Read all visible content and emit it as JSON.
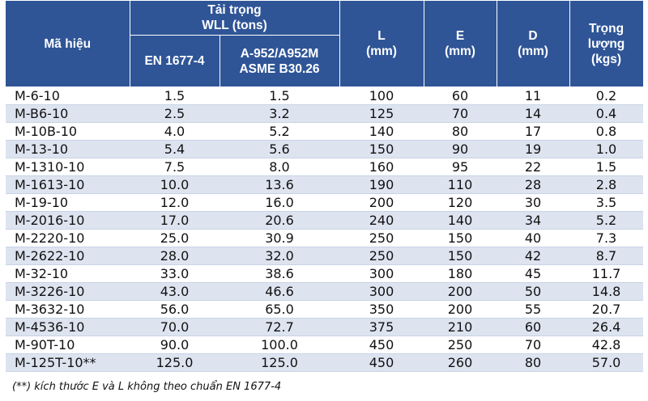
{
  "header": {
    "model": "Mã hiệu",
    "load_group_line1": "Tải trọng",
    "load_group_line2": "WLL (tons)",
    "en": "EN 1677-4",
    "astm_line1": "A-952/A952M",
    "astm_line2": "ASME B30.26",
    "l_line1": "L",
    "l_line2": "(mm)",
    "e_line1": "E",
    "e_line2": "(mm)",
    "d_line1": "D",
    "d_line2": "(mm)",
    "w_line1": "Trọng",
    "w_line2": "lượng",
    "w_line3": "(kgs)"
  },
  "rows": [
    {
      "code": "M-6-10",
      "en": "1.5",
      "astm": "1.5",
      "l": "100",
      "e": "60",
      "d": "11",
      "w": "0.2"
    },
    {
      "code": "M-B6-10",
      "en": "2.5",
      "astm": "3.2",
      "l": "125",
      "e": "70",
      "d": "14",
      "w": "0.4"
    },
    {
      "code": "M-10B-10",
      "en": "4.0",
      "astm": "5.2",
      "l": "140",
      "e": "80",
      "d": "17",
      "w": "0.8"
    },
    {
      "code": "M-13-10",
      "en": "5.4",
      "astm": "5.6",
      "l": "150",
      "e": "90",
      "d": "19",
      "w": "1.0"
    },
    {
      "code": "M-1310-10",
      "en": "7.5",
      "astm": "8.0",
      "l": "160",
      "e": "95",
      "d": "22",
      "w": "1.5"
    },
    {
      "code": "M-1613-10",
      "en": "10.0",
      "astm": "13.6",
      "l": "190",
      "e": "110",
      "d": "28",
      "w": "2.8"
    },
    {
      "code": "M-19-10",
      "en": "12.0",
      "astm": "16.0",
      "l": "200",
      "e": "120",
      "d": "30",
      "w": "3.5"
    },
    {
      "code": "M-2016-10",
      "en": "17.0",
      "astm": "20.6",
      "l": "240",
      "e": "140",
      "d": "34",
      "w": "5.2"
    },
    {
      "code": "M-2220-10",
      "en": "25.0",
      "astm": "30.9",
      "l": "250",
      "e": "150",
      "d": "40",
      "w": "7.3"
    },
    {
      "code": "M-2622-10",
      "en": "28.0",
      "astm": "32.0",
      "l": "250",
      "e": "150",
      "d": "42",
      "w": "8.7"
    },
    {
      "code": "M-32-10",
      "en": "33.0",
      "astm": "38.6",
      "l": "300",
      "e": "180",
      "d": "45",
      "w": "11.7"
    },
    {
      "code": "M-3226-10",
      "en": "43.0",
      "astm": "46.6",
      "l": "300",
      "e": "200",
      "d": "50",
      "w": "14.8"
    },
    {
      "code": "M-3632-10",
      "en": "56.0",
      "astm": "65.0",
      "l": "350",
      "e": "200",
      "d": "55",
      "w": "20.7"
    },
    {
      "code": "M-4536-10",
      "en": "70.0",
      "astm": "72.7",
      "l": "375",
      "e": "210",
      "d": "60",
      "w": "26.4"
    },
    {
      "code": "M-90T-10",
      "en": "90.0",
      "astm": "100.0",
      "l": "450",
      "e": "250",
      "d": "70",
      "w": "42.8"
    },
    {
      "code": "M-125T-10**",
      "en": "125.0",
      "astm": "125.0",
      "l": "450",
      "e": "260",
      "d": "80",
      "w": "57.0"
    }
  ],
  "footnote": "(**) kích thước E và L không theo chuẩn EN 1677-4",
  "colors": {
    "header_bg": "#2f5597",
    "stripe": "#dde4f0"
  }
}
